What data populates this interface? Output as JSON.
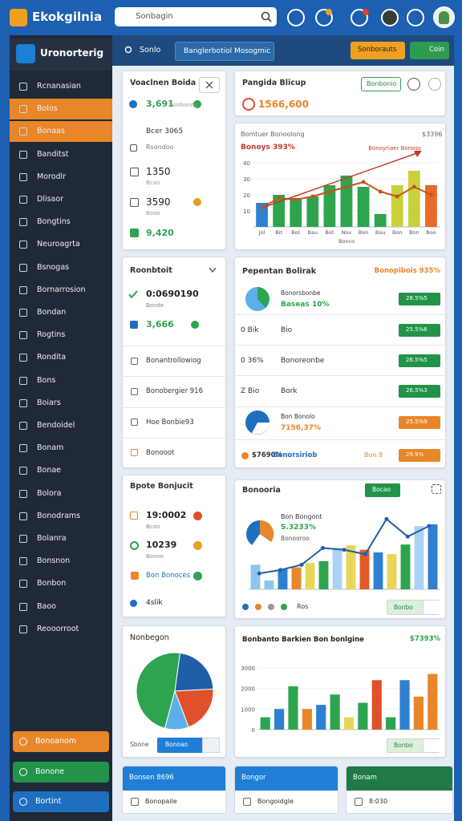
{
  "header": {
    "brand": "Ekokgilnia",
    "search": "Sonbagin"
  },
  "sidebar": {
    "title": "Uronorterig",
    "items": [
      "Rcnanasian",
      "Bolos",
      "Bonaas",
      "Banditst",
      "Morodlr",
      "Dlisaor",
      "Bongtins",
      "Neuroagrta",
      "Bsnogas",
      "Bornarrosion",
      "Bondan",
      "Rogtins",
      "Rondita",
      "Bons",
      "Boiars",
      "Bendoidel",
      "Bonam",
      "Bonae",
      "Bolora",
      "Bonodrams",
      "Bolanra",
      "Bonsnon",
      "Bonbon",
      "Baoo",
      "Reooorroot"
    ],
    "footer": [
      "Bonoanom",
      "Bonone",
      "Bortint"
    ]
  },
  "toolbar": {
    "search": "Sonlo",
    "tab": "Banglerbotiol Mosogmic",
    "action": "Sonborauts",
    "chip": "Coin"
  },
  "summary": {
    "title": "Voaclnen Boida",
    "rows": [
      [
        "3,691",
        "Bonbonos"
      ],
      [
        "Bcer 3065",
        "Rsondoo"
      ],
      [
        "1350",
        "Bcao"
      ],
      [
        "3590",
        "Boao"
      ],
      [
        "9,420"
      ]
    ]
  },
  "overview": {
    "title": "Pangida Blicup",
    "button": "Bonbonio",
    "value": "1566,600"
  },
  "trend": {
    "type": "bar",
    "title": "Bomtuer Bonoolong",
    "corner": "$3396",
    "subtitle": "Bonoys 393%",
    "annotation": "Bonoyriaer Bonoss",
    "xlabel": "Bonco",
    "categories": [
      "Jol",
      "Bit",
      "Bot",
      "Bau",
      "Bot",
      "Nov",
      "Bon",
      "Bau",
      "Bon",
      "Bon",
      "Boo"
    ],
    "values": [
      15,
      20,
      18,
      19,
      26,
      32,
      25,
      8,
      26,
      35,
      26
    ],
    "colors": [
      "#2f80d0",
      "#2ea44f",
      "#2ea44f",
      "#2ea44f",
      "#2ea44f",
      "#2ea44f",
      "#2ea44f",
      "#2ea44f",
      "#c9d13a",
      "#c9d13a",
      "#e8692a"
    ],
    "line_values": [
      12,
      18,
      17,
      19,
      22,
      25,
      28,
      22,
      19,
      25,
      20
    ],
    "line_color": "#c0561a",
    "ylim": [
      0,
      45
    ],
    "yticks": [
      10,
      20,
      30,
      40
    ]
  },
  "activity": {
    "title": "Roonbtoit",
    "stats": [
      [
        "0:0690190",
        "Bonde"
      ],
      [
        "3,666"
      ]
    ],
    "items": [
      "Bonantrollowiog",
      "Bonobergier 916",
      "Hoe Bonbie93",
      "Bonooot"
    ]
  },
  "report": {
    "title": "Pepentan Bolirak",
    "badge": "Bonopibois 935%",
    "rows": [
      [
        "Bonorsbonbe",
        "Baseas 10%",
        "28.5%5"
      ],
      [
        "0 Bik",
        "Bio",
        "25.5%6"
      ],
      [
        "0 36%",
        "Bonoreonbe",
        "26.5%5"
      ],
      [
        "Z Bio",
        "Bork",
        "26.5%3"
      ],
      [
        "Bon Bonolo",
        "7156,37%",
        "25.5%9"
      ],
      [
        "$7690%",
        "Bonorsiriob",
        "Bon 8",
        "29.9%"
      ]
    ]
  },
  "tasks": {
    "title": "Bpote Bonjucit",
    "rows": [
      [
        "19:0002",
        "Bcoo"
      ],
      [
        "10239",
        "Bonoo"
      ],
      [
        "Bon Bonoces"
      ],
      [
        "4slik"
      ]
    ]
  },
  "insights": {
    "type": "bar",
    "title": "Bonooria",
    "button": "Bocao",
    "heading": "Bon Bongont",
    "value": "S.3233%",
    "note": "Bonooroo",
    "values": [
      28,
      10,
      23,
      25,
      30,
      32,
      47,
      50,
      45,
      42,
      40,
      51,
      72,
      74
    ],
    "colors": [
      "#8ec5ef",
      "#8ec5ef",
      "#2f80d0",
      "#e8862a",
      "#e8d65a",
      "#2ea44f",
      "#a9d3f5",
      "#e8d65a",
      "#e05a2a",
      "#2f80d0",
      "#e8d65a",
      "#2ea44f",
      "#a9d3f5",
      "#2f80d0"
    ],
    "line_values": [
      18,
      22,
      28,
      47,
      45,
      40,
      80,
      60,
      72
    ],
    "line_color": "#1f5fa8",
    "legend": "Ros",
    "select": "Bonbo"
  },
  "share": {
    "type": "pie",
    "title": "Nonbegon",
    "values": [
      48,
      22,
      20,
      10
    ],
    "colors": [
      "#2ea44f",
      "#1f5fa8",
      "#e0502a",
      "#5bb0ea"
    ],
    "label": "Sbone",
    "select": "Bonoao"
  },
  "sales": {
    "type": "bar",
    "title": "Bonbanto Barkien Bon bonlgine",
    "corner": "$7393%",
    "values": [
      600,
      1000,
      2100,
      1000,
      1200,
      1700,
      600,
      1300,
      2400,
      600,
      2400,
      1600,
      2700
    ],
    "colors": [
      "#2ea44f",
      "#2f80d0",
      "#2ea44f",
      "#e8862a",
      "#2f80d0",
      "#2ea44f",
      "#e8d65a",
      "#2ea44f",
      "#e0502a",
      "#2ea44f",
      "#2f80d0",
      "#e8862a",
      "#e8862a"
    ],
    "ylim": [
      0,
      3500
    ],
    "yticks": [
      0,
      1000,
      2000,
      3000
    ],
    "select": "Bonbo"
  },
  "cards": [
    {
      "title": "Bonsen 8696",
      "item": "Bonopaile"
    },
    {
      "title": "Bongor",
      "item": "Bongoidgle"
    },
    {
      "title": "Bonam",
      "item": "8:030"
    }
  ]
}
